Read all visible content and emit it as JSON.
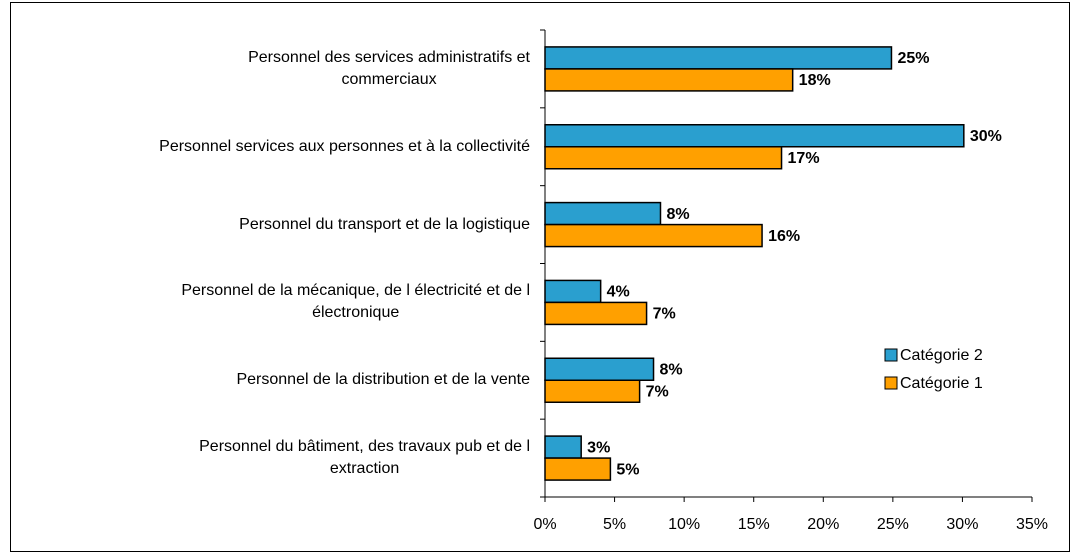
{
  "chart_data": {
    "type": "hbar",
    "categories": [
      "Personnel des services administratifs et\ncommerciaux",
      "Personnel services aux personnes et à la collectivité",
      "Personnel du transport et de la logistique",
      "Personnel de la mécanique, de l électricité et de l\nélectronique",
      "Personnel de la distribution et de la vente",
      "Personnel du bâtiment, des travaux pub et de l\nextraction"
    ],
    "series": [
      {
        "name": "Catégorie 2",
        "color": "#2a9fcf",
        "values": [
          24.9,
          30.1,
          8.3,
          4.0,
          7.8,
          2.6
        ],
        "value_labels": [
          "25%",
          "30%",
          "8%",
          "4%",
          "8%",
          "3%"
        ]
      },
      {
        "name": "Catégorie 1",
        "color": "#ffa000",
        "values": [
          17.8,
          17.0,
          15.6,
          7.3,
          6.8,
          4.7
        ],
        "value_labels": [
          "18%",
          "17%",
          "16%",
          "7%",
          "7%",
          "5%"
        ]
      }
    ],
    "xlim": [
      0,
      35
    ],
    "xticks": [
      {
        "value": 0,
        "label": "0%"
      },
      {
        "value": 5,
        "label": "5%"
      },
      {
        "value": 10,
        "label": "10%"
      },
      {
        "value": 15,
        "label": "15%"
      },
      {
        "value": 20,
        "label": "20%"
      },
      {
        "value": 25,
        "label": "25%"
      },
      {
        "value": 30,
        "label": "30%"
      },
      {
        "value": 35,
        "label": "35%"
      }
    ],
    "legend": "right"
  }
}
